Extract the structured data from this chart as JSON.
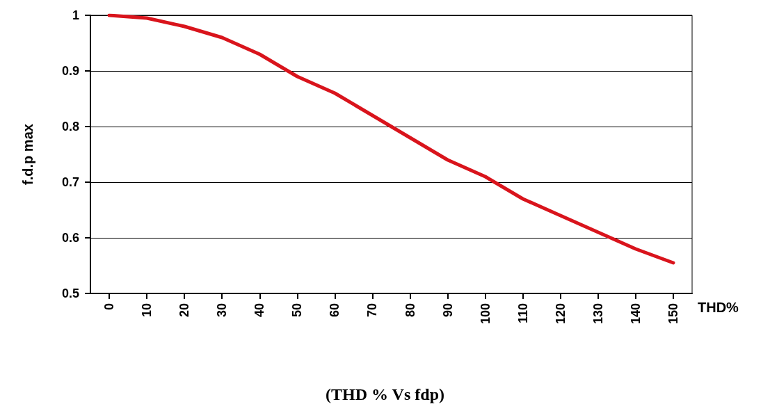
{
  "chart_data": {
    "type": "line",
    "title": "(THD % Vs fdp)",
    "xlabel": "THD%",
    "ylabel": "f.d.p max",
    "categories": [
      "0",
      "10",
      "20",
      "30",
      "40",
      "50",
      "60",
      "70",
      "80",
      "90",
      "100",
      "110",
      "120",
      "130",
      "140",
      "150"
    ],
    "series": [
      {
        "color": "#d9141c",
        "values": [
          1.0,
          0.995,
          0.98,
          0.96,
          0.93,
          0.89,
          0.86,
          0.82,
          0.78,
          0.74,
          0.71,
          0.67,
          0.64,
          0.61,
          0.58,
          0.555
        ]
      }
    ],
    "ylim": [
      0.5,
      1
    ],
    "yticks": [
      0.5,
      0.6,
      0.7,
      0.8,
      0.9,
      1
    ],
    "grid": "y",
    "marker": "none",
    "line_style": "solid"
  }
}
